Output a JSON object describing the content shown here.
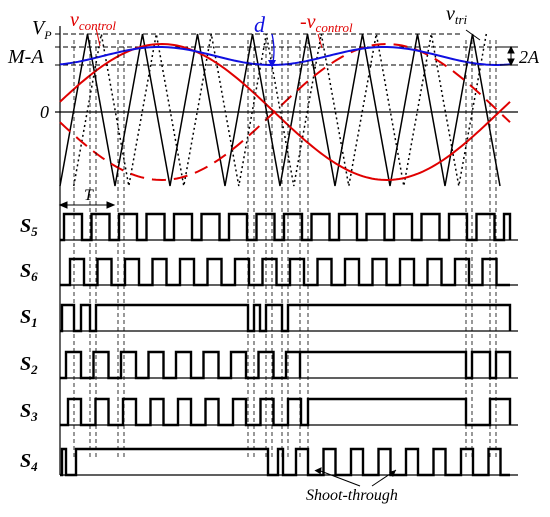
{
  "labels": {
    "vp_main": "V",
    "vp_sub": "P",
    "m_minus_a": "M-A",
    "zero": "0",
    "vcontrol_main": "v",
    "vcontrol_sub": "control",
    "neg_vcontrol_main": "-v",
    "neg_vcontrol_sub": "control",
    "d": "d",
    "vtri_main": "v",
    "vtri_sub": "tri",
    "two_a": "2A",
    "period": "T",
    "shoot_through": "Shoot-through"
  },
  "signals": [
    {
      "main": "S",
      "sub": "5"
    },
    {
      "main": "S",
      "sub": "6"
    },
    {
      "main": "S",
      "sub": "1"
    },
    {
      "main": "S",
      "sub": "2"
    },
    {
      "main": "S",
      "sub": "3"
    },
    {
      "main": "S",
      "sub": "4"
    }
  ],
  "colors": {
    "control": "#e00000",
    "duty": "#1010e0",
    "carrier": "#000000"
  }
}
